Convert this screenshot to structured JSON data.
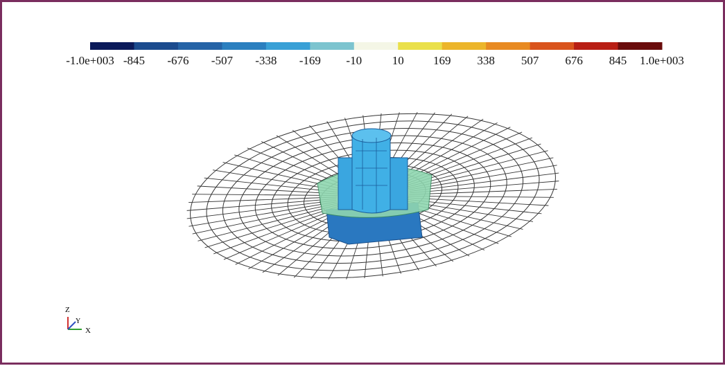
{
  "colorbar": {
    "labels": [
      "-1.0e+003",
      "-845",
      "-676",
      "-507",
      "-338",
      "-169",
      "-10",
      "10",
      "169",
      "338",
      "507",
      "676",
      "845",
      "1.0e+003"
    ],
    "colors": [
      "#0b1a5a",
      "#1b4b8e",
      "#2563a6",
      "#2b7fbf",
      "#39a0d6",
      "#7cc4cf",
      "#f4f6e6",
      "#eae04a",
      "#ecb52a",
      "#e88a22",
      "#d9541c",
      "#b81e14",
      "#6a0c0c"
    ]
  },
  "triad": {
    "z": "Z",
    "y": "Y",
    "x": "X"
  }
}
